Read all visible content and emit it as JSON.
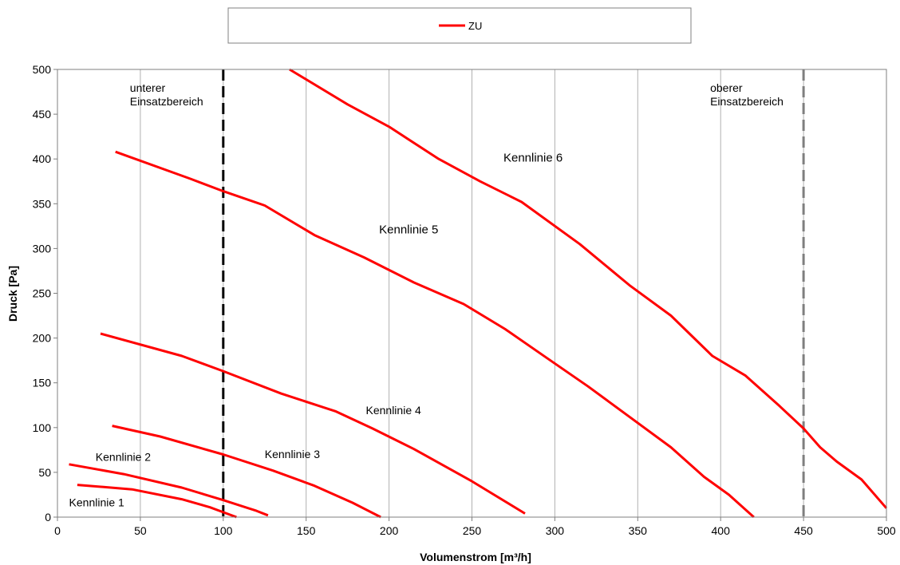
{
  "chart_data": {
    "type": "line",
    "title": "",
    "xlabel": "Volumenstrom [m³/h]",
    "ylabel": "Druck [Pa]",
    "xlim": [
      0,
      500
    ],
    "ylim": [
      0,
      500
    ],
    "x_ticks": [
      0,
      50,
      100,
      150,
      200,
      250,
      300,
      350,
      400,
      450,
      500
    ],
    "y_ticks": [
      0,
      50,
      100,
      150,
      200,
      250,
      300,
      350,
      400,
      450,
      500
    ],
    "grid": "vertical",
    "legend": {
      "position": "top-center",
      "entries": [
        {
          "label": "ZU",
          "color": "#ff0000"
        }
      ]
    },
    "series": [
      {
        "label": "Kennlinie 1",
        "color": "#ff0000",
        "points": [
          [
            12,
            36
          ],
          [
            45,
            31
          ],
          [
            75,
            20
          ],
          [
            92,
            11
          ],
          [
            108,
            0
          ]
        ]
      },
      {
        "label": "Kennlinie 2",
        "color": "#ff0000",
        "points": [
          [
            7,
            59
          ],
          [
            40,
            48
          ],
          [
            75,
            33
          ],
          [
            100,
            19
          ],
          [
            120,
            7
          ],
          [
            127,
            2
          ]
        ]
      },
      {
        "label": "Kennlinie 3",
        "color": "#ff0000",
        "points": [
          [
            33,
            102
          ],
          [
            62,
            90
          ],
          [
            100,
            70
          ],
          [
            130,
            52
          ],
          [
            155,
            35
          ],
          [
            178,
            16
          ],
          [
            195,
            0
          ]
        ]
      },
      {
        "label": "Kennlinie 4",
        "color": "#ff0000",
        "points": [
          [
            26,
            205
          ],
          [
            75,
            180
          ],
          [
            100,
            163
          ],
          [
            135,
            138
          ],
          [
            168,
            118
          ],
          [
            190,
            99
          ],
          [
            215,
            76
          ],
          [
            250,
            40
          ],
          [
            282,
            4
          ]
        ]
      },
      {
        "label": "Kennlinie 5",
        "color": "#ff0000",
        "points": [
          [
            35,
            408
          ],
          [
            80,
            378
          ],
          [
            100,
            364
          ],
          [
            125,
            348
          ],
          [
            155,
            315
          ],
          [
            185,
            290
          ],
          [
            215,
            262
          ],
          [
            245,
            238
          ],
          [
            270,
            210
          ],
          [
            295,
            178
          ],
          [
            320,
            146
          ],
          [
            345,
            112
          ],
          [
            370,
            78
          ],
          [
            390,
            45
          ],
          [
            405,
            25
          ],
          [
            420,
            0
          ]
        ]
      },
      {
        "label": "Kennlinie 6",
        "color": "#ff0000",
        "points": [
          [
            140,
            500
          ],
          [
            175,
            461
          ],
          [
            200,
            436
          ],
          [
            230,
            400
          ],
          [
            255,
            375
          ],
          [
            280,
            352
          ],
          [
            315,
            305
          ],
          [
            345,
            259
          ],
          [
            370,
            225
          ],
          [
            395,
            180
          ],
          [
            415,
            158
          ],
          [
            435,
            125
          ],
          [
            450,
            99
          ],
          [
            460,
            78
          ],
          [
            470,
            62
          ],
          [
            485,
            42
          ],
          [
            500,
            10
          ]
        ]
      }
    ],
    "reference_lines": [
      {
        "x": 100,
        "style": "dashed",
        "color": "#000000",
        "label_line1": "unterer",
        "label_line2": "Einsatzbereich"
      },
      {
        "x": 450,
        "style": "dashed",
        "color": "#7f7f7f",
        "label_line1": "oberer",
        "label_line2": "Einsatzbereich"
      }
    ],
    "curve_label_anchors": [
      {
        "text": "Kennlinie 1",
        "x": 7,
        "y": 12
      },
      {
        "text": "Kennlinie 2",
        "x": 23,
        "y": 63
      },
      {
        "text": "Kennlinie 3",
        "x": 125,
        "y": 66
      },
      {
        "text": "Kennlinie 4",
        "x": 186,
        "y": 115
      },
      {
        "text": "Kennlinie 5",
        "x": 194,
        "y": 317
      },
      {
        "text": "Kennlinie 6",
        "x": 269,
        "y": 397
      }
    ]
  }
}
